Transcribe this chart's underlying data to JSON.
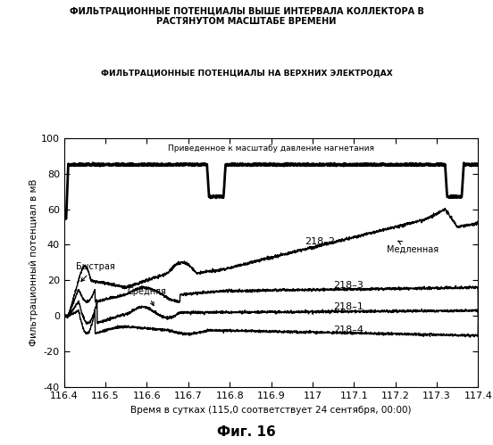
{
  "title_main": "ФИЛЬТРАЦИОННЫЕ ПОТЕНЦИАЛЫ ВЫШЕ ИНТЕРВАЛА КОЛЛЕКТОРА В\nРАСТЯНУТОМ МАСШТАБЕ ВРЕМЕНИ",
  "subtitle": "ФИЛЬТРАЦИОННЫЕ ПОТЕНЦИАЛЫ НА ВЕРХНИХ ЭЛЕКТРОДАХ",
  "xlabel": "Время в сутках (115,0 соответствует 24 сентября, 00:00)",
  "ylabel": "Фильтрационный потенциал в мВ",
  "fig_label": "Фиг. 16",
  "xlim": [
    116.4,
    117.4
  ],
  "ylim": [
    -40,
    100
  ],
  "yticks": [
    -40,
    -20,
    0,
    20,
    40,
    60,
    80,
    100
  ],
  "xticks": [
    116.4,
    116.5,
    116.6,
    116.7,
    116.8,
    116.9,
    117.0,
    117.1,
    117.2,
    117.3,
    117.4
  ],
  "xtick_labels": [
    "116.4",
    "116.5",
    "116.6",
    "116.7",
    "116.8",
    "116.9",
    "117",
    "117.1",
    "117.2",
    "117.3",
    "117.4"
  ],
  "pressure_label": "Приведенное к масштабу давление нагнетания",
  "label_218_2": "218–2",
  "label_218_3": "218–3",
  "label_218_1": "218–1",
  "label_218_4": "218–4",
  "label_fast": "Быстрая",
  "label_medium": "Средняя",
  "label_slow": "Медленная",
  "background": "#ffffff",
  "line_color": "#000000"
}
